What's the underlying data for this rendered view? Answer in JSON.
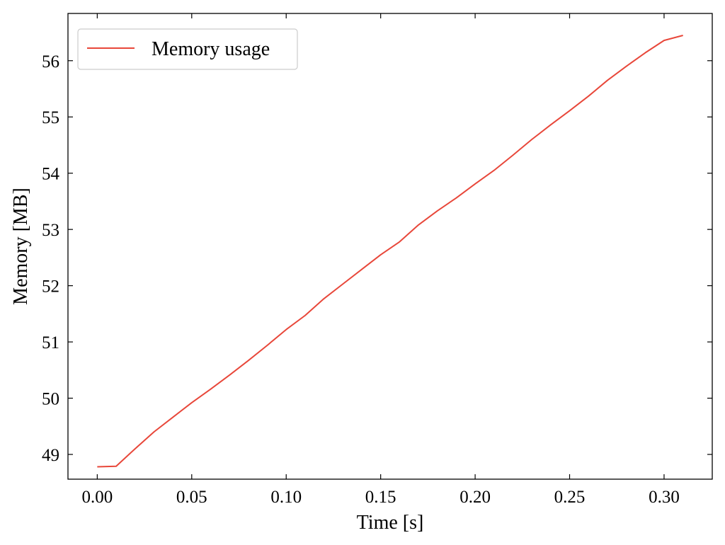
{
  "chart_data": {
    "type": "line",
    "title": "",
    "xlabel": "Time [s]",
    "ylabel": "Memory [MB]",
    "xlim": [
      -0.0155,
      0.3255
    ],
    "ylim": [
      48.56,
      56.84
    ],
    "xticks": [
      0.0,
      0.05,
      0.1,
      0.15,
      0.2,
      0.25,
      0.3
    ],
    "xtick_labels": [
      "0.00",
      "0.05",
      "0.10",
      "0.15",
      "0.20",
      "0.25",
      "0.30"
    ],
    "yticks": [
      49,
      50,
      51,
      52,
      53,
      54,
      55,
      56
    ],
    "ytick_labels": [
      "49",
      "50",
      "51",
      "52",
      "53",
      "54",
      "55",
      "56"
    ],
    "grid": false,
    "legend_position": "top-left",
    "series": [
      {
        "name": "Memory usage",
        "color": "#e8473a",
        "x": [
          0.0,
          0.01,
          0.02,
          0.03,
          0.04,
          0.05,
          0.06,
          0.07,
          0.08,
          0.09,
          0.1,
          0.11,
          0.12,
          0.13,
          0.14,
          0.15,
          0.16,
          0.17,
          0.18,
          0.19,
          0.2,
          0.21,
          0.22,
          0.23,
          0.24,
          0.25,
          0.26,
          0.27,
          0.28,
          0.29,
          0.3,
          0.31
        ],
        "y": [
          48.78,
          48.79,
          49.1,
          49.4,
          49.66,
          49.92,
          50.16,
          50.41,
          50.67,
          50.94,
          51.22,
          51.47,
          51.77,
          52.03,
          52.29,
          52.55,
          52.78,
          53.08,
          53.33,
          53.56,
          53.81,
          54.05,
          54.32,
          54.6,
          54.86,
          55.11,
          55.37,
          55.65,
          55.9,
          56.14,
          56.36,
          56.45
        ]
      }
    ]
  }
}
